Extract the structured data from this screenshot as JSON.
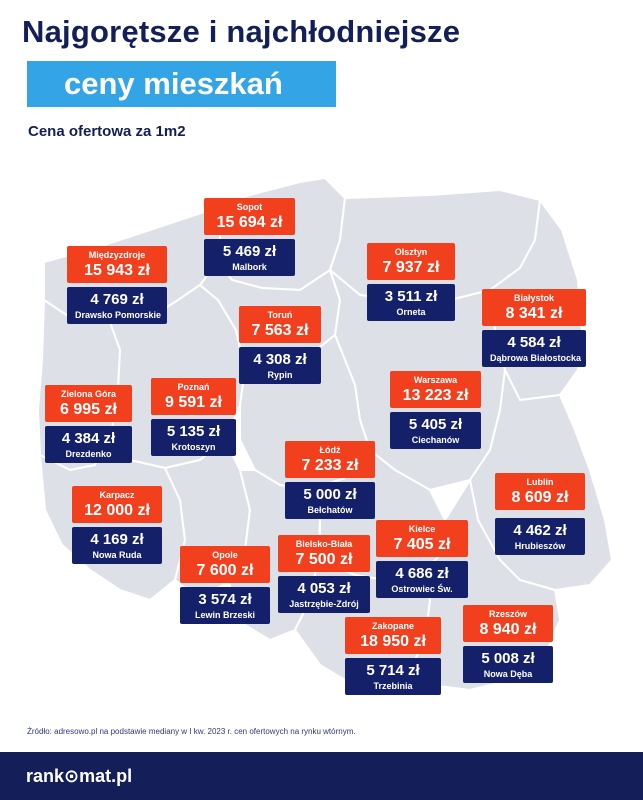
{
  "header": {
    "title_line1": "Najgorętsze i najchłodniejsze",
    "title_line2": "ceny mieszkań",
    "subtitle": "Cena ofertowa za 1m2"
  },
  "colors": {
    "hot": "#f23f1e",
    "cold": "#15206b",
    "accent": "#33a5e6",
    "navy": "#141f5a",
    "map_fill": "#dde0e6",
    "map_border": "#ffffff"
  },
  "pairs": [
    {
      "id": "sopot",
      "hot_city": "Sopot",
      "hot_price": "15 694 zł",
      "cold_city": "Malbork",
      "cold_price": "5 469 zł"
    },
    {
      "id": "miedzyzdroje",
      "hot_city": "Międzyzdroje",
      "hot_price": "15 943 zł",
      "cold_city": "Drawsko Pomorskie",
      "cold_price": "4 769 zł"
    },
    {
      "id": "olsztyn",
      "hot_city": "Olsztyn",
      "hot_price": "7 937 zł",
      "cold_city": "Orneta",
      "cold_price": "3 511 zł"
    },
    {
      "id": "bialystok",
      "hot_city": "Białystok",
      "hot_price": "8 341 zł",
      "cold_city": "Dąbrowa Białostocka",
      "cold_price": "4 584 zł"
    },
    {
      "id": "torun",
      "hot_city": "Toruń",
      "hot_price": "7 563 zł",
      "cold_city": "Rypin",
      "cold_price": "4 308 zł"
    },
    {
      "id": "warszawa",
      "hot_city": "Warszawa",
      "hot_price": "13 223 zł",
      "cold_city": "Ciechanów",
      "cold_price": "5 405 zł"
    },
    {
      "id": "zielona-gora",
      "hot_city": "Zielona Góra",
      "hot_price": "6 995 zł",
      "cold_city": "Drezdenko",
      "cold_price": "4 384 zł"
    },
    {
      "id": "poznan",
      "hot_city": "Poznań",
      "hot_price": "9 591 zł",
      "cold_city": "Krotoszyn",
      "cold_price": "5 135 zł"
    },
    {
      "id": "lodz",
      "hot_city": "Łódź",
      "hot_price": "7 233 zł",
      "cold_city": "Bełchatów",
      "cold_price": "5 000 zł"
    },
    {
      "id": "lublin",
      "hot_city": "Lublin",
      "hot_price": "8 609 zł",
      "cold_city": "Hrubieszów",
      "cold_price": "4 462 zł"
    },
    {
      "id": "karpacz",
      "hot_city": "Karpacz",
      "hot_price": "12 000 zł",
      "cold_city": "Nowa Ruda",
      "cold_price": "4 169 zł"
    },
    {
      "id": "kielce",
      "hot_city": "Kielce",
      "hot_price": "7 405 zł",
      "cold_city": "Ostrowiec Św.",
      "cold_price": "4 686 zł"
    },
    {
      "id": "opole",
      "hot_city": "Opole",
      "hot_price": "7 600 zł",
      "cold_city": "Lewin Brzeski",
      "cold_price": "3 574 zł"
    },
    {
      "id": "bielsko-biala",
      "hot_city": "Bielsko-Biała",
      "hot_price": "7 500 zł",
      "cold_city": "Jastrzębie-Zdrój",
      "cold_price": "4 053 zł"
    },
    {
      "id": "zakopane",
      "hot_city": "Zakopane",
      "hot_price": "18 950 zł",
      "cold_city": "Trzebinia",
      "cold_price": "5 714 zł"
    },
    {
      "id": "rzeszow",
      "hot_city": "Rzeszów",
      "hot_price": "8 940 zł",
      "cold_city": "Nowa Dęba",
      "cold_price": "5 008 zł"
    }
  ],
  "source": "Źródło: adresowo.pl na podstawie mediany w I kw. 2023 r. cen ofertowych na rynku wtórnym.",
  "footer": {
    "logo": "rank⊙mat.pl"
  }
}
